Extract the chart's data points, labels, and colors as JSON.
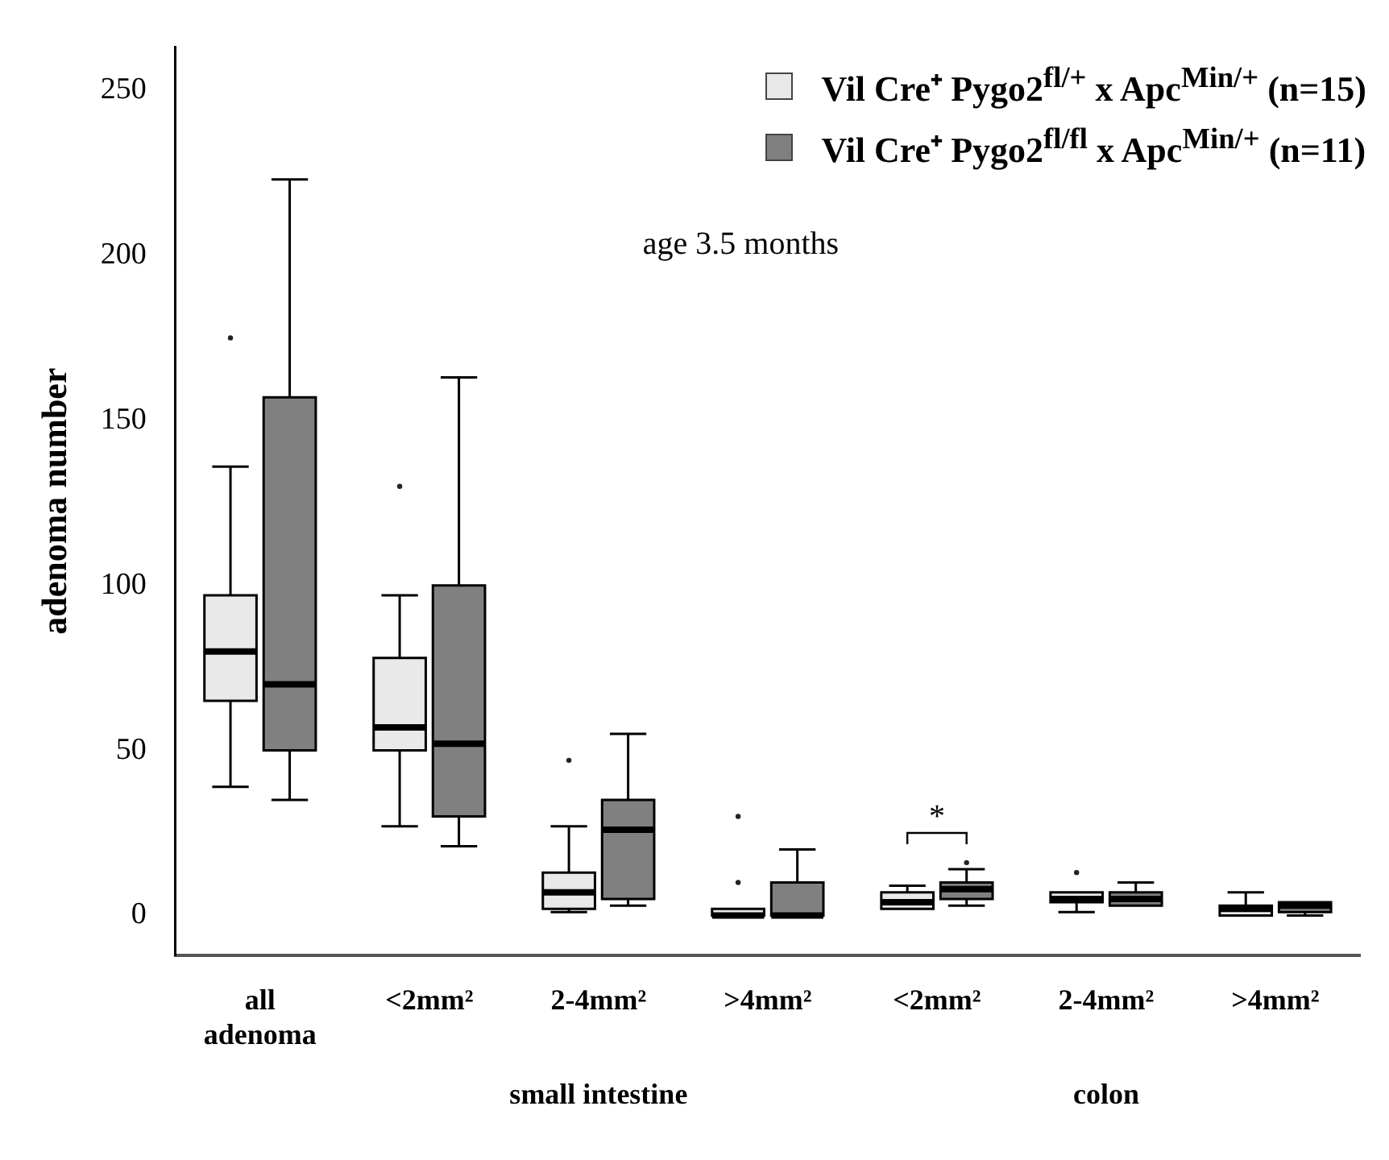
{
  "chart_data": {
    "type": "box",
    "ylabel": "adenoma number",
    "categories": [
      "all adenoma",
      "<2mm²",
      "2-4mm²",
      ">4mm²",
      "<2mm²",
      "2-4mm²",
      ">4mm²"
    ],
    "ylim": [
      -12,
      263
    ],
    "yticks": [
      0,
      50,
      100,
      150,
      200,
      250
    ],
    "grid": false,
    "legend": "top right",
    "annotations": [
      "age 3.5 months",
      "*",
      "small intestine",
      "colon"
    ],
    "series": [
      {
        "name": "Vil Cre⁺ Pygo2$^{fl/+}$ x Apc$^{Min/+}$ (n=15)",
        "color": "#e9e9e9",
        "boxes": [
          {
            "low": 39,
            "q1": 65,
            "median": 80,
            "q3": 97,
            "high": 136,
            "outliers": [
              175
            ]
          },
          {
            "low": 27,
            "q1": 50,
            "median": 57,
            "q3": 78,
            "high": 97,
            "outliers": [
              130
            ]
          },
          {
            "low": 1,
            "q1": 2,
            "median": 7,
            "q3": 13,
            "high": 27,
            "outliers": [
              47
            ]
          },
          {
            "low": 0,
            "q1": 0,
            "median": 0,
            "q3": 2,
            "high": 2,
            "outliers": [
              10,
              30
            ]
          },
          {
            "low": 2,
            "q1": 2,
            "median": 4,
            "q3": 7,
            "high": 9
          },
          {
            "low": 1,
            "q1": 4,
            "median": 5,
            "q3": 7,
            "high": 7,
            "outliers": [
              13
            ]
          },
          {
            "low": 0,
            "q1": 0,
            "median": 2,
            "q3": 3,
            "high": 7
          }
        ]
      },
      {
        "name": "Vil Cre⁺ Pygo2$^{fl/fl}$ x Apc$^{Min/+}$ (n=11)",
        "color": "#808080",
        "boxes": [
          {
            "low": 35,
            "q1": 50,
            "median": 70,
            "q3": 157,
            "high": 223
          },
          {
            "low": 21,
            "q1": 30,
            "median": 52,
            "q3": 100,
            "high": 163
          },
          {
            "low": 3,
            "q1": 5,
            "median": 26,
            "q3": 35,
            "high": 55
          },
          {
            "low": 0,
            "q1": 0,
            "median": 0,
            "q3": 10,
            "high": 20
          },
          {
            "low": 3,
            "q1": 5,
            "median": 8,
            "q3": 10,
            "high": 14,
            "outliers": [
              16
            ]
          },
          {
            "low": 3,
            "q1": 3,
            "median": 5,
            "q3": 7,
            "high": 10
          },
          {
            "low": 0,
            "q1": 1,
            "median": 3,
            "q3": 4,
            "high": 4
          }
        ]
      }
    ]
  }
}
